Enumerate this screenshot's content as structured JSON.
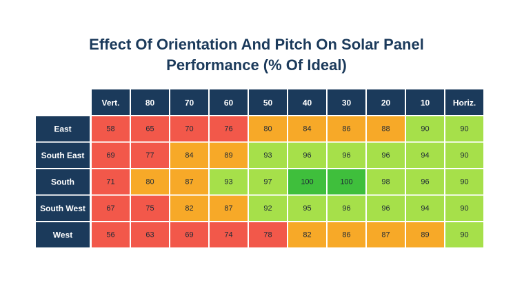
{
  "chart_data": {
    "type": "heatmap",
    "title_line1": "Effect Of Orientation And Pitch On Solar Panel",
    "title_line2": "Performance (% Of Ideal)",
    "columns": [
      "Vert.",
      "80",
      "70",
      "60",
      "50",
      "40",
      "30",
      "20",
      "10",
      "Horiz."
    ],
    "rows": [
      "East",
      "South East",
      "South",
      "South West",
      "West"
    ],
    "values": [
      [
        58,
        65,
        70,
        76,
        80,
        84,
        86,
        88,
        90,
        90
      ],
      [
        69,
        77,
        84,
        89,
        93,
        96,
        96,
        96,
        94,
        90
      ],
      [
        71,
        80,
        87,
        93,
        97,
        100,
        100,
        98,
        96,
        90
      ],
      [
        67,
        75,
        82,
        87,
        92,
        95,
        96,
        96,
        94,
        90
      ],
      [
        56,
        63,
        69,
        74,
        78,
        82,
        86,
        87,
        89,
        90
      ]
    ],
    "colors": {
      "header": "#1b3a5b",
      "red": "#f2584a",
      "orange": "#f7a928",
      "light_green": "#a6e04a",
      "green": "#3fbf3c"
    }
  }
}
